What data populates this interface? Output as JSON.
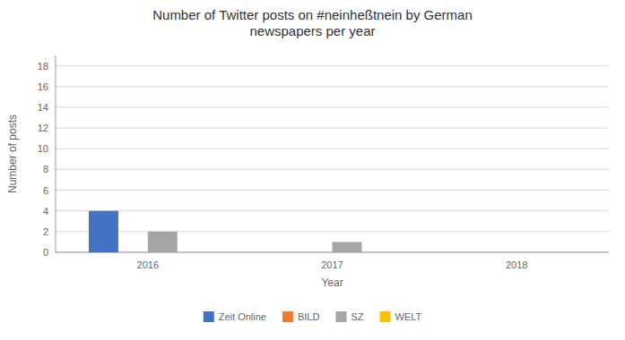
{
  "chart_data": {
    "type": "bar",
    "title": "Number of Twitter posts on #neinheßtnein by German\nnewspapers per year",
    "xlabel": "Year",
    "ylabel": "Number of posts",
    "categories": [
      "2016",
      "2017",
      "2018"
    ],
    "series": [
      {
        "name": "Zeit Online",
        "color": "#4472C4",
        "values": [
          4,
          0,
          0
        ]
      },
      {
        "name": "BILD",
        "color": "#ED7D31",
        "values": [
          0,
          0,
          0
        ]
      },
      {
        "name": "SZ",
        "color": "#A5A5A5",
        "values": [
          2,
          1,
          0
        ]
      },
      {
        "name": "WELT",
        "color": "#FFC000",
        "values": [
          0,
          0,
          0
        ]
      }
    ],
    "ylim": [
      0,
      19
    ],
    "yticks": [
      0,
      2,
      4,
      6,
      8,
      10,
      12,
      14,
      16,
      18
    ],
    "grid": true,
    "legend": "bottom"
  }
}
